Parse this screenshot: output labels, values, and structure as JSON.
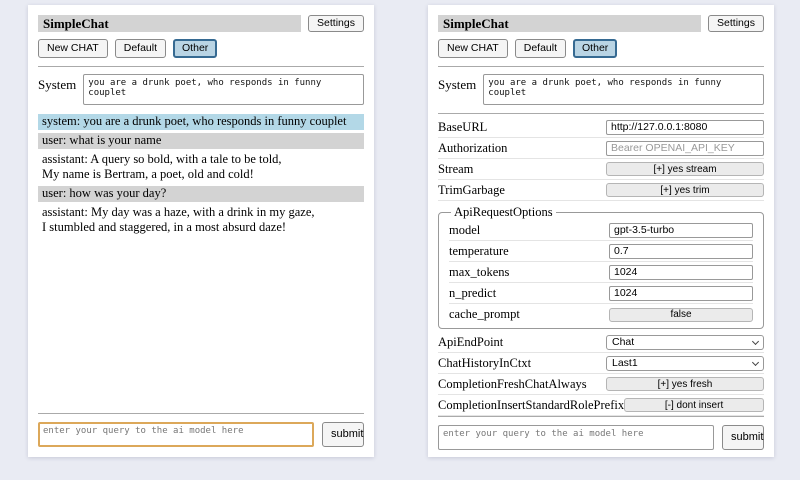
{
  "shared": {
    "title": "SimpleChat",
    "settings_label": "Settings",
    "new_chat_label": "New CHAT",
    "session_default_label": "Default",
    "session_other_label": "Other",
    "system_label": "System",
    "system_prompt": "you are a drunk poet, who responds in funny couplet",
    "query_placeholder": "enter your query to the ai model here",
    "submit_label": "submit"
  },
  "chat": {
    "messages": [
      {
        "role": "system",
        "text": "system: you are a drunk poet, who responds in funny couplet"
      },
      {
        "role": "user",
        "text": "user: what is your name"
      },
      {
        "role": "assistant",
        "text": "assistant: A query so bold, with a tale to be told,\nMy name is Bertram, a poet, old and cold!"
      },
      {
        "role": "user",
        "text": "user: how was your day?"
      },
      {
        "role": "assistant",
        "text": "assistant: My day was a haze, with a drink in my gaze,\nI stumbled and staggered, in a most absurd daze!"
      }
    ]
  },
  "settings": {
    "rows": [
      {
        "label": "BaseURL",
        "type": "input",
        "value": "http://127.0.0.1:8080"
      },
      {
        "label": "Authorization",
        "type": "input",
        "value": "",
        "placeholder": "Bearer OPENAI_API_KEY"
      },
      {
        "label": "Stream",
        "type": "button",
        "value": "[+] yes stream"
      },
      {
        "label": "TrimGarbage",
        "type": "button",
        "value": "[+] yes trim"
      }
    ],
    "fieldset": {
      "legend": "ApiRequestOptions",
      "rows": [
        {
          "label": "model",
          "type": "input",
          "value": "gpt-3.5-turbo"
        },
        {
          "label": "temperature",
          "type": "input",
          "value": "0.7"
        },
        {
          "label": "max_tokens",
          "type": "input",
          "value": "1024"
        },
        {
          "label": "n_predict",
          "type": "input",
          "value": "1024"
        },
        {
          "label": "cache_prompt",
          "type": "button",
          "value": "false"
        }
      ]
    },
    "rows2": [
      {
        "label": "ApiEndPoint",
        "type": "select",
        "value": "Chat"
      },
      {
        "label": "ChatHistoryInCtxt",
        "type": "select",
        "value": "Last1"
      },
      {
        "label": "CompletionFreshChatAlways",
        "type": "button",
        "value": "[+] yes fresh"
      },
      {
        "label": "CompletionInsertStandardRolePrefix",
        "type": "button",
        "value": "[-] dont insert"
      }
    ]
  },
  "colors": {
    "page_bg": "#e9ebf3",
    "card_bg": "#ffffff",
    "titlebar_bg": "#d3d3d3",
    "active_tab_bg": "#b9d4e4",
    "active_tab_border": "#366a92",
    "system_msg_bg": "#b3d8e7",
    "user_msg_bg": "#d3d3d3",
    "focus_border": "#dca85a",
    "separator": "#aaaaaa",
    "row_separator": "#e4e4e4",
    "control_bg": "#ebebeb"
  }
}
